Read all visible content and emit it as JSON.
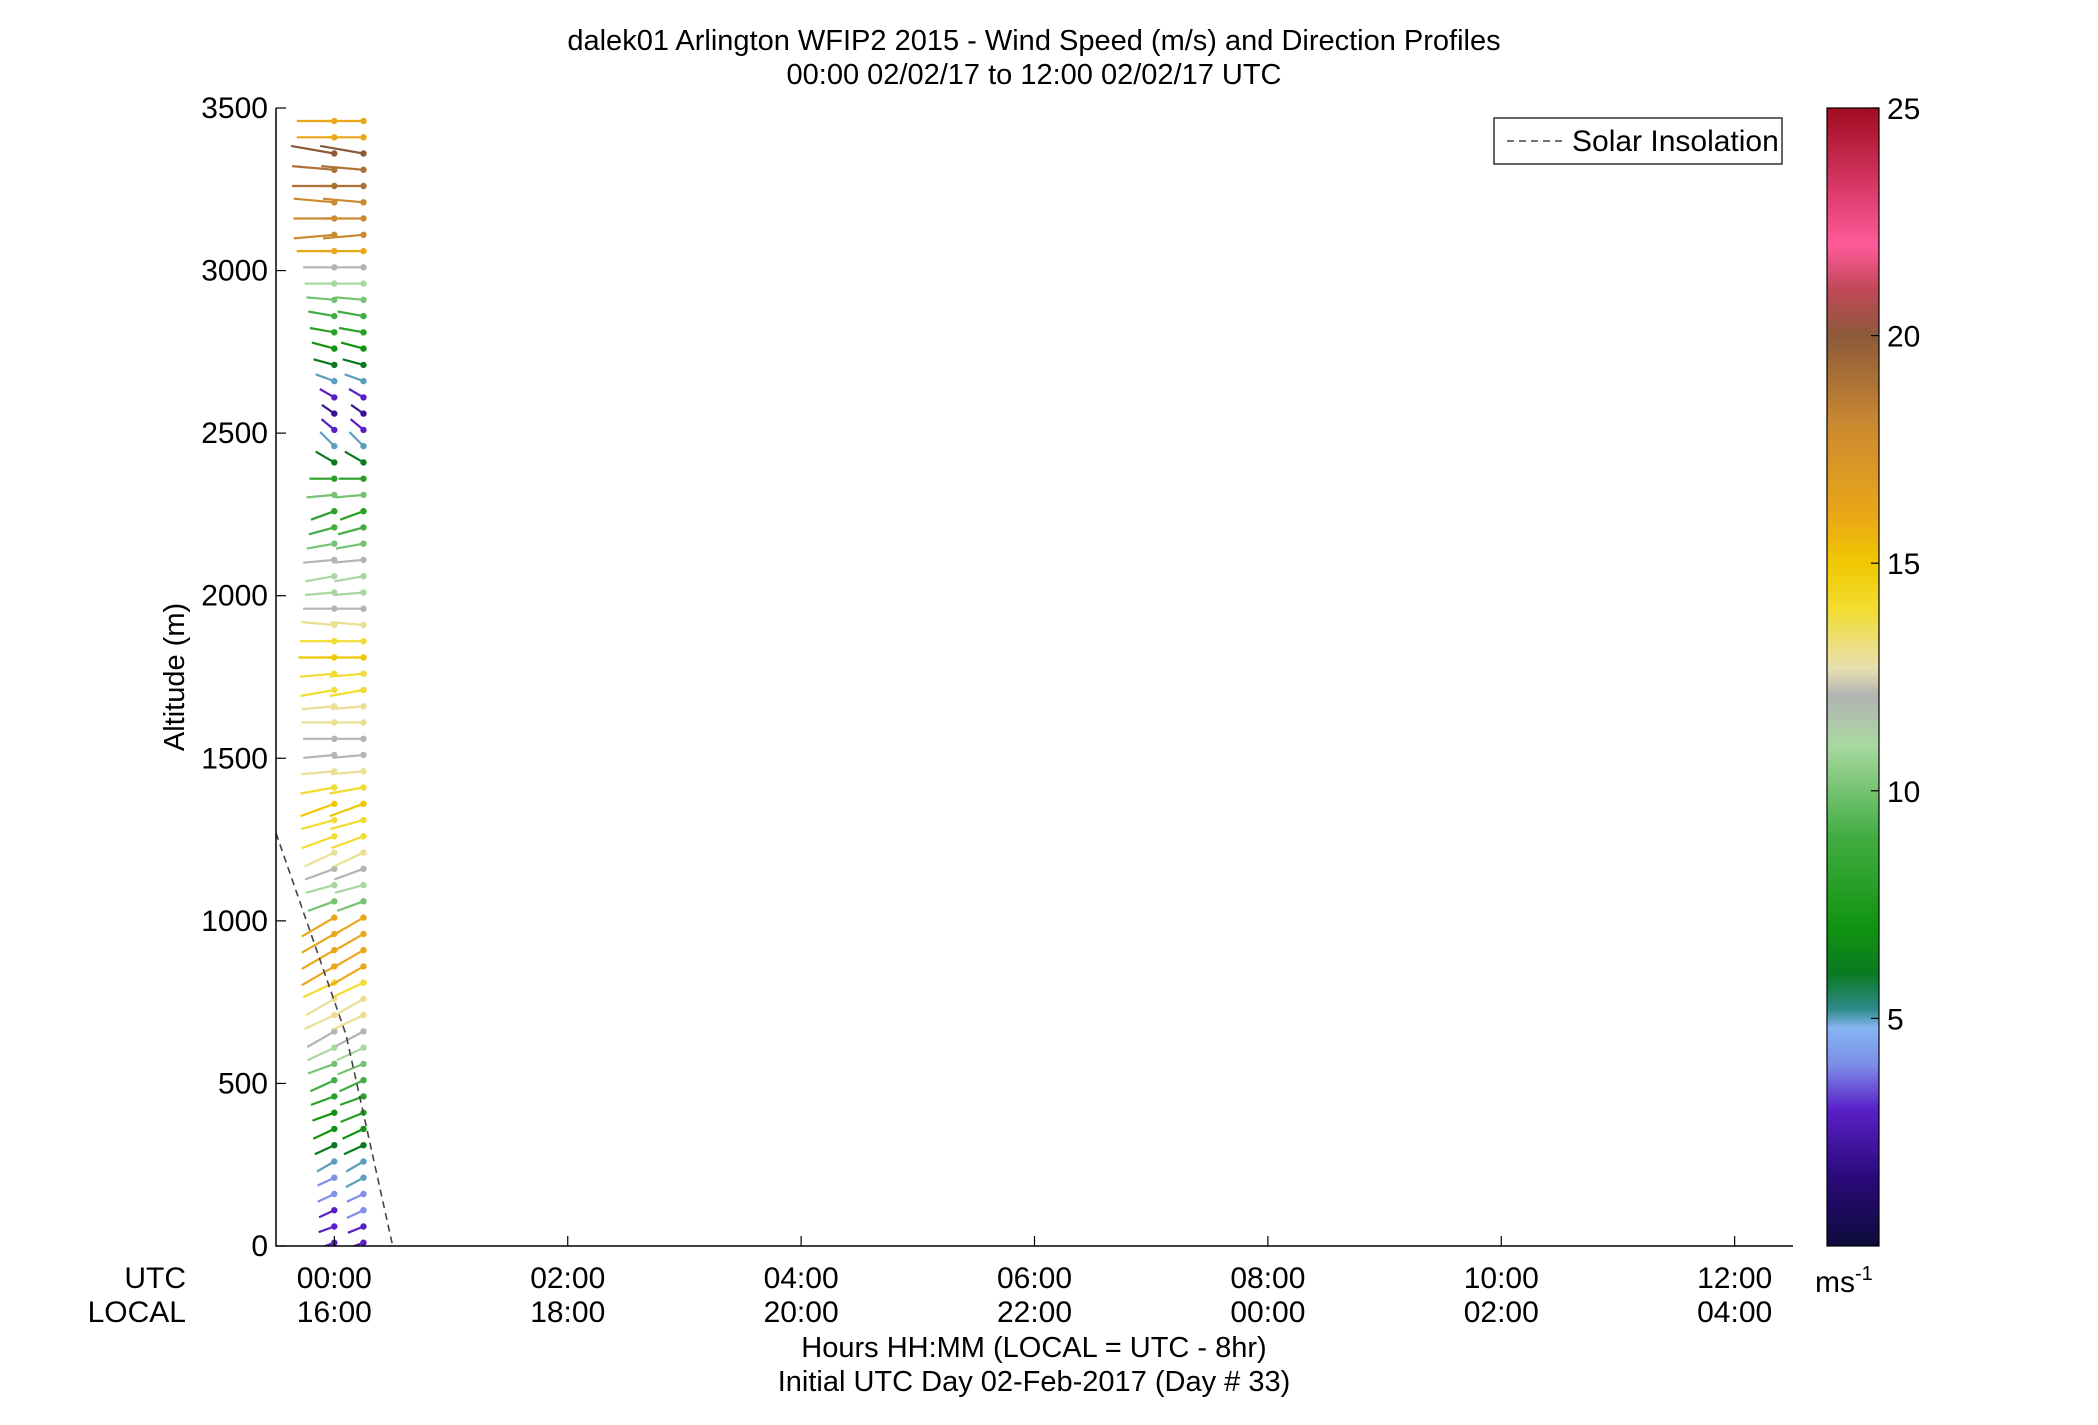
{
  "chart_data": {
    "type": "scatter",
    "subtype": "wind-barb-profiles",
    "title_line1": "dalek01 Arlington WFIP2 2015 - Wind Speed (m/s) and Direction Profiles",
    "title_line2": "00:00 02/02/17 to 12:00 02/02/17  UTC",
    "ylabel": "Altitude (m)",
    "ylim": [
      0,
      3500
    ],
    "yticks": [
      0,
      500,
      1000,
      1500,
      2000,
      2500,
      3000,
      3500
    ],
    "ytick_labels": [
      "0",
      "500",
      "1000",
      "1500",
      "2000",
      "2500",
      "3000",
      "3500"
    ],
    "xlim_hours": [
      -0.5,
      12.5
    ],
    "xticks_hours": [
      0,
      2,
      4,
      6,
      8,
      10,
      12
    ],
    "x_row_utc_label": "UTC",
    "x_row_local_label": "LOCAL",
    "utc_tick_labels": [
      "00:00",
      "02:00",
      "04:00",
      "06:00",
      "08:00",
      "10:00",
      "12:00"
    ],
    "local_tick_labels": [
      "16:00",
      "18:00",
      "20:00",
      "22:00",
      "00:00",
      "02:00",
      "04:00"
    ],
    "xlabel_line1": "Hours HH:MM  (LOCAL = UTC - 8hr)",
    "xlabel_line2": "Initial UTC Day 02-Feb-2017 (Day # 33)",
    "legend": {
      "label": "Solar Insolation",
      "placement": "top-right"
    },
    "solar_insolation": [
      [
        -0.5,
        1270
      ],
      [
        0.1,
        650
      ],
      [
        0.5,
        0
      ]
    ],
    "colorbar": {
      "min": 0,
      "max": 25,
      "ticks": [
        5,
        10,
        15,
        20,
        25
      ],
      "tick_labels": [
        "5",
        "10",
        "15",
        "20",
        "25"
      ],
      "unit": "ms",
      "unit_exponent": "-1",
      "stops": [
        [
          0,
          "#0d0b3a"
        ],
        [
          1.5,
          "#2a0a7a"
        ],
        [
          3,
          "#5a20c8"
        ],
        [
          4,
          "#7d8fe8"
        ],
        [
          4.8,
          "#86b4f2"
        ],
        [
          5.2,
          "#2d8a8a"
        ],
        [
          6,
          "#0a7a20"
        ],
        [
          7,
          "#109410"
        ],
        [
          9,
          "#42ad42"
        ],
        [
          11,
          "#a8d8a0"
        ],
        [
          12.1,
          "#b3b3b3"
        ],
        [
          12.7,
          "#e8e0b0"
        ],
        [
          14,
          "#f2dc30"
        ],
        [
          15,
          "#f0c800"
        ],
        [
          16,
          "#eaa818"
        ],
        [
          18,
          "#cc8a30"
        ],
        [
          20,
          "#8c5a3a"
        ],
        [
          21,
          "#c04858"
        ],
        [
          22,
          "#ff5a9a"
        ],
        [
          25,
          "#a00c20"
        ]
      ]
    },
    "wind_profiles": [
      {
        "t": 0.0,
        "speeds": [
          3,
          3,
          3,
          4,
          4,
          5,
          6,
          7,
          7,
          8,
          9,
          10,
          11,
          12,
          13,
          13,
          14,
          16,
          16,
          16,
          16,
          10,
          11,
          12,
          13,
          14,
          14,
          15,
          14,
          13,
          12,
          12,
          13,
          13,
          14,
          14,
          15,
          14,
          13,
          12,
          11,
          11,
          12,
          10,
          9,
          8,
          10,
          8,
          6,
          5,
          3,
          2,
          3,
          5,
          6,
          7,
          8,
          9,
          10,
          11,
          12,
          16,
          18,
          18,
          18,
          19,
          19,
          20,
          16,
          16
        ],
        "dirs": [
          250,
          250,
          245,
          245,
          245,
          240,
          245,
          245,
          250,
          250,
          245,
          250,
          245,
          240,
          245,
          240,
          245,
          240,
          240,
          240,
          240,
          250,
          255,
          250,
          245,
          250,
          255,
          250,
          260,
          265,
          265,
          270,
          270,
          265,
          260,
          265,
          270,
          270,
          275,
          270,
          265,
          260,
          265,
          260,
          255,
          250,
          265,
          270,
          300,
          315,
          310,
          305,
          300,
          290,
          285,
          285,
          280,
          280,
          275,
          270,
          270,
          270,
          265,
          270,
          275,
          270,
          275,
          280,
          270,
          270
        ]
      },
      {
        "t": 0.25,
        "speeds": [
          3,
          3,
          4,
          4,
          5,
          5,
          6,
          7,
          8,
          8,
          9,
          10,
          11,
          12,
          13,
          13,
          14,
          16,
          16,
          16,
          16,
          10,
          11,
          12,
          13,
          14,
          14,
          15,
          14,
          13,
          12,
          12,
          13,
          13,
          14,
          14,
          15,
          14,
          13,
          12,
          11,
          11,
          12,
          10,
          9,
          8,
          10,
          8,
          6,
          5,
          3,
          2,
          3,
          5,
          6,
          7,
          8,
          9,
          10,
          11,
          12,
          16,
          18,
          18,
          18,
          19,
          19,
          20,
          16,
          16
        ],
        "dirs": [
          250,
          248,
          245,
          245,
          242,
          240,
          245,
          245,
          248,
          250,
          245,
          248,
          245,
          242,
          245,
          240,
          245,
          240,
          240,
          240,
          240,
          250,
          255,
          250,
          245,
          250,
          255,
          250,
          260,
          265,
          265,
          270,
          270,
          265,
          260,
          265,
          270,
          270,
          275,
          270,
          265,
          260,
          265,
          260,
          255,
          250,
          265,
          270,
          300,
          315,
          310,
          305,
          300,
          290,
          285,
          285,
          280,
          280,
          275,
          270,
          270,
          270,
          265,
          270,
          275,
          270,
          275,
          280,
          270,
          270
        ]
      }
    ]
  }
}
